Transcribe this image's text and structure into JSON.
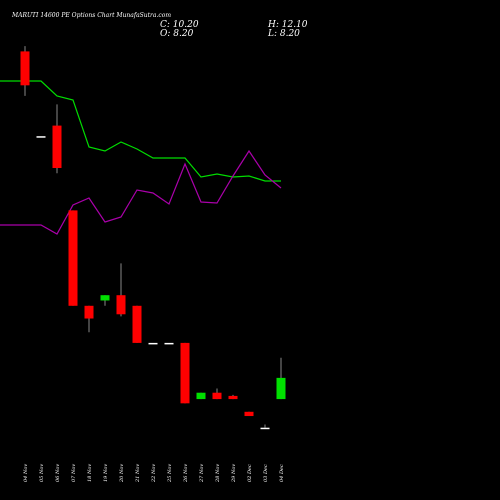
{
  "header": {
    "title": "MARUTI 14600 PE Options Chart MunafaSutra.com",
    "close": "C: 10.20",
    "high": "H: 12.10",
    "open": "O: 8.20",
    "low": "L: 8.20"
  },
  "chart_data": {
    "type": "candlestick",
    "background": "#000000",
    "colors": {
      "up": "#00e000",
      "down": "#ff0000",
      "neutral": "#ffffff",
      "line_green": "#00dd00",
      "line_purple": "#aa00aa"
    },
    "categories": [
      "04 Nov",
      "05 Nov",
      "06 Nov",
      "07 Nov",
      "18 Nov",
      "19 Nov",
      "20 Nov",
      "21 Nov",
      "22 Nov",
      "25 Nov",
      "26 Nov",
      "27 Nov",
      "28 Nov",
      "29 Nov",
      "02 Dec",
      "03 Dec",
      "04 Dec"
    ],
    "candles": [
      {
        "o": 41.0,
        "h": 41.5,
        "l": 36.8,
        "c": 37.8
      },
      {
        "o": 33.0,
        "h": 33.0,
        "l": 33.0,
        "c": 33.0
      },
      {
        "o": 34.0,
        "h": 36.0,
        "l": 29.5,
        "c": 30.0
      },
      {
        "o": 26.0,
        "h": 26.0,
        "l": 17.0,
        "c": 17.0
      },
      {
        "o": 17.0,
        "h": 17.0,
        "l": 14.5,
        "c": 15.8
      },
      {
        "o": 17.5,
        "h": 18.0,
        "l": 17.0,
        "c": 18.0
      },
      {
        "o": 18.0,
        "h": 21.0,
        "l": 16.0,
        "c": 16.2
      },
      {
        "o": 17.0,
        "h": 17.0,
        "l": 13.5,
        "c": 13.5
      },
      {
        "o": 13.5,
        "h": 13.5,
        "l": 13.5,
        "c": 13.5
      },
      {
        "o": 13.5,
        "h": 13.5,
        "l": 13.5,
        "c": 13.5
      },
      {
        "o": 13.5,
        "h": 13.5,
        "l": 7.8,
        "c": 7.8
      },
      {
        "o": 8.2,
        "h": 8.8,
        "l": 8.2,
        "c": 8.8
      },
      {
        "o": 8.8,
        "h": 9.2,
        "l": 8.2,
        "c": 8.2
      },
      {
        "o": 8.5,
        "h": 8.6,
        "l": 8.2,
        "c": 8.2
      },
      {
        "o": 7.0,
        "h": 7.0,
        "l": 6.6,
        "c": 6.6
      },
      {
        "o": 5.5,
        "h": 5.8,
        "l": 5.5,
        "c": 5.5
      },
      {
        "o": 8.2,
        "h": 12.1,
        "l": 8.2,
        "c": 10.2
      }
    ],
    "green_line": [
      81,
      81,
      96,
      100,
      147,
      151,
      142,
      149,
      158,
      158,
      158,
      177,
      174,
      177,
      176,
      181,
      181
    ],
    "purple_line": [
      225,
      225,
      234,
      205,
      198,
      222,
      217,
      190,
      193,
      204,
      164,
      202,
      203,
      176,
      151,
      175,
      188
    ]
  }
}
